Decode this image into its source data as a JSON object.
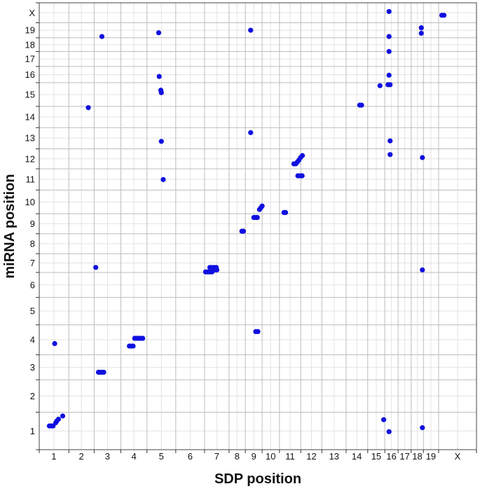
{
  "chart_data": {
    "type": "scatter",
    "title": "",
    "xlabel": "SDP position",
    "ylabel": "miRNA position",
    "grid": true,
    "legend": false,
    "point_color": "#1010e0",
    "grid_color": "#e3e3e3",
    "chromosome_boundary_color": "#bdbdbd",
    "xlim": [
      0,
      21
    ],
    "ylim": [
      0,
      21
    ],
    "x_chromosomes": [
      "1",
      "2",
      "3",
      "4",
      "5",
      "6",
      "7",
      "8",
      "9",
      "10",
      "11",
      "12",
      "13",
      "14",
      "15",
      "16",
      "17",
      "18",
      "19",
      "X"
    ],
    "y_chromosomes": [
      "1",
      "2",
      "3",
      "4",
      "5",
      "6",
      "7",
      "8",
      "9",
      "10",
      "11",
      "12",
      "13",
      "14",
      "15",
      "16",
      "17",
      "18",
      "19",
      "X"
    ],
    "x_boundaries": [
      0,
      1.11,
      2.06,
      3.06,
      4.04,
      5.12,
      6.2,
      7.12,
      7.73,
      8.36,
      9.01,
      9.81,
      10.6,
      11.51,
      12.32,
      12.96,
      13.46,
      13.95,
      14.41,
      14.98,
      16.4
    ],
    "y_boundaries": [
      0,
      1.5,
      2.8,
      3.8,
      5.0,
      6.1,
      7.1,
      7.85,
      8.65,
      9.45,
      10.4,
      11.25,
      12.05,
      12.9,
      13.75,
      14.7,
      15.35,
      15.95,
      16.5,
      17.1,
      17.9
    ],
    "x_tick_positions": [
      0.55,
      1.58,
      2.56,
      3.55,
      4.58,
      5.66,
      6.66,
      7.42,
      8.05,
      8.68,
      9.41,
      10.21,
      11.06,
      11.91,
      12.64,
      13.21,
      13.71,
      14.18,
      14.69,
      15.69
    ],
    "y_tick_positions": [
      0.75,
      2.15,
      3.3,
      4.4,
      5.55,
      6.6,
      7.48,
      8.25,
      9.05,
      9.92,
      10.83,
      11.65,
      12.48,
      13.33,
      14.22,
      15.02,
      15.65,
      16.22,
      16.8,
      17.5
    ],
    "points": [
      {
        "x": 0.38,
        "y": 0.95
      },
      {
        "x": 0.45,
        "y": 0.95
      },
      {
        "x": 0.52,
        "y": 0.95
      },
      {
        "x": 0.62,
        "y": 1.08
      },
      {
        "x": 0.66,
        "y": 1.15
      },
      {
        "x": 0.72,
        "y": 1.22
      },
      {
        "x": 0.88,
        "y": 1.35
      },
      {
        "x": 0.58,
        "y": 4.25
      },
      {
        "x": 2.22,
        "y": 3.1
      },
      {
        "x": 2.28,
        "y": 3.1
      },
      {
        "x": 2.35,
        "y": 3.1
      },
      {
        "x": 2.42,
        "y": 3.1
      },
      {
        "x": 2.12,
        "y": 7.3
      },
      {
        "x": 1.84,
        "y": 13.7
      },
      {
        "x": 2.35,
        "y": 16.55
      },
      {
        "x": 3.38,
        "y": 4.15
      },
      {
        "x": 3.45,
        "y": 4.15
      },
      {
        "x": 3.52,
        "y": 4.15
      },
      {
        "x": 3.58,
        "y": 4.46
      },
      {
        "x": 3.65,
        "y": 4.46
      },
      {
        "x": 3.72,
        "y": 4.46
      },
      {
        "x": 3.8,
        "y": 4.46
      },
      {
        "x": 3.88,
        "y": 4.46
      },
      {
        "x": 4.48,
        "y": 16.7
      },
      {
        "x": 4.5,
        "y": 14.95
      },
      {
        "x": 4.56,
        "y": 14.4
      },
      {
        "x": 4.58,
        "y": 14.3
      },
      {
        "x": 4.58,
        "y": 12.35
      },
      {
        "x": 4.65,
        "y": 10.82
      },
      {
        "x": 6.24,
        "y": 7.12
      },
      {
        "x": 6.32,
        "y": 7.12
      },
      {
        "x": 6.4,
        "y": 7.12
      },
      {
        "x": 6.48,
        "y": 7.12
      },
      {
        "x": 6.58,
        "y": 7.2
      },
      {
        "x": 6.66,
        "y": 7.2
      },
      {
        "x": 6.4,
        "y": 7.3
      },
      {
        "x": 6.48,
        "y": 7.3
      },
      {
        "x": 6.56,
        "y": 7.3
      },
      {
        "x": 6.64,
        "y": 7.3
      },
      {
        "x": 7.6,
        "y": 8.75
      },
      {
        "x": 7.66,
        "y": 8.75
      },
      {
        "x": 7.93,
        "y": 16.8
      },
      {
        "x": 7.93,
        "y": 12.7
      },
      {
        "x": 8.05,
        "y": 9.3
      },
      {
        "x": 8.12,
        "y": 9.3
      },
      {
        "x": 8.18,
        "y": 9.3
      },
      {
        "x": 8.26,
        "y": 9.62
      },
      {
        "x": 8.32,
        "y": 9.7
      },
      {
        "x": 8.36,
        "y": 9.76
      },
      {
        "x": 8.12,
        "y": 4.73
      },
      {
        "x": 8.2,
        "y": 4.73
      },
      {
        "x": 9.18,
        "y": 9.5
      },
      {
        "x": 9.24,
        "y": 9.5
      },
      {
        "x": 9.55,
        "y": 11.45
      },
      {
        "x": 9.62,
        "y": 11.45
      },
      {
        "x": 9.68,
        "y": 11.52
      },
      {
        "x": 9.74,
        "y": 11.6
      },
      {
        "x": 9.8,
        "y": 11.7
      },
      {
        "x": 9.87,
        "y": 11.78
      },
      {
        "x": 9.7,
        "y": 10.97
      },
      {
        "x": 9.78,
        "y": 10.97
      },
      {
        "x": 9.86,
        "y": 10.97
      },
      {
        "x": 12.02,
        "y": 13.8
      },
      {
        "x": 12.09,
        "y": 13.8
      },
      {
        "x": 12.78,
        "y": 14.58
      },
      {
        "x": 12.92,
        "y": 1.2
      },
      {
        "x": 13.12,
        "y": 17.55
      },
      {
        "x": 13.12,
        "y": 16.55
      },
      {
        "x": 13.12,
        "y": 15.95
      },
      {
        "x": 13.12,
        "y": 15.0
      },
      {
        "x": 13.08,
        "y": 14.62
      },
      {
        "x": 13.16,
        "y": 14.62
      },
      {
        "x": 13.16,
        "y": 12.37
      },
      {
        "x": 13.16,
        "y": 11.82
      },
      {
        "x": 13.12,
        "y": 0.72
      },
      {
        "x": 14.33,
        "y": 16.9
      },
      {
        "x": 14.33,
        "y": 16.68
      },
      {
        "x": 14.37,
        "y": 11.7
      },
      {
        "x": 14.37,
        "y": 7.2
      },
      {
        "x": 14.37,
        "y": 0.88
      },
      {
        "x": 15.1,
        "y": 17.4
      },
      {
        "x": 15.18,
        "y": 17.4
      }
    ]
  }
}
